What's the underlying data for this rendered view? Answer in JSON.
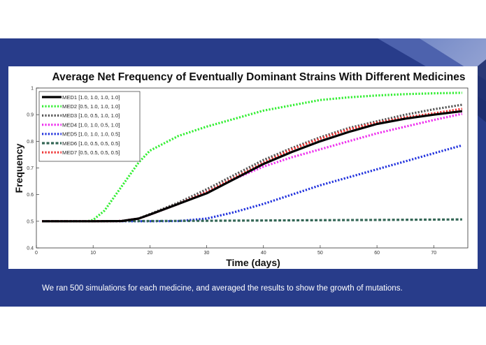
{
  "caption": "We ran 500 simulations for each medicine, and averaged the results to show the growth of mutations.",
  "chart_data": {
    "type": "line",
    "title": "Average Net Frequency of Eventually Dominant Strains With Different Medicines",
    "xlabel": "Time (days)",
    "ylabel": "Frequency",
    "xlim": [
      0,
      76
    ],
    "ylim": [
      0.4,
      1.0
    ],
    "xticks": [
      0,
      10,
      20,
      30,
      40,
      50,
      60,
      70
    ],
    "yticks": [
      0.4,
      0.5,
      0.6,
      0.7,
      0.8,
      0.9,
      1.0
    ],
    "legend_position": "top-left",
    "series": [
      {
        "name": "MED1 [1.0, 1.0, 1.0, 1.0]",
        "color": "#000000",
        "style": "solid",
        "x": [
          1,
          10,
          15,
          18,
          20,
          25,
          30,
          35,
          40,
          45,
          50,
          55,
          60,
          65,
          70,
          75
        ],
        "y": [
          0.5,
          0.5,
          0.501,
          0.51,
          0.525,
          0.565,
          0.605,
          0.66,
          0.715,
          0.76,
          0.8,
          0.835,
          0.865,
          0.885,
          0.9,
          0.913
        ]
      },
      {
        "name": "MED2 [0.5, 1.0, 1.0, 1.0]",
        "color": "#33ee33",
        "style": "dotted",
        "x": [
          1,
          9,
          10,
          12,
          15,
          18,
          20,
          25,
          30,
          35,
          40,
          45,
          50,
          55,
          60,
          65,
          70,
          75
        ],
        "y": [
          0.5,
          0.5,
          0.505,
          0.54,
          0.63,
          0.72,
          0.765,
          0.82,
          0.855,
          0.885,
          0.915,
          0.935,
          0.955,
          0.965,
          0.972,
          0.977,
          0.98,
          0.982
        ]
      },
      {
        "name": "MED3 [1.0, 0.5, 1.0, 1.0]",
        "color": "#555555",
        "style": "dotted",
        "x": [
          1,
          10,
          15,
          18,
          20,
          25,
          30,
          35,
          40,
          45,
          50,
          55,
          60,
          65,
          70,
          75
        ],
        "y": [
          0.5,
          0.5,
          0.501,
          0.51,
          0.527,
          0.57,
          0.62,
          0.675,
          0.73,
          0.775,
          0.815,
          0.85,
          0.875,
          0.9,
          0.92,
          0.937
        ]
      },
      {
        "name": "MED4 [1.0, 1.0, 0.5, 1.0]",
        "color": "#ee33ee",
        "style": "dotted",
        "x": [
          1,
          10,
          15,
          18,
          20,
          25,
          30,
          35,
          40,
          45,
          50,
          55,
          60,
          65,
          70,
          75
        ],
        "y": [
          0.5,
          0.5,
          0.501,
          0.51,
          0.525,
          0.565,
          0.61,
          0.66,
          0.705,
          0.74,
          0.77,
          0.8,
          0.83,
          0.855,
          0.88,
          0.903
        ]
      },
      {
        "name": "MED5 [1.0, 1.0, 1.0, 0.5]",
        "color": "#2233dd",
        "style": "dotted",
        "x": [
          1,
          20,
          25,
          30,
          35,
          40,
          45,
          50,
          55,
          60,
          65,
          70,
          75
        ],
        "y": [
          0.5,
          0.5,
          0.501,
          0.51,
          0.535,
          0.565,
          0.6,
          0.635,
          0.665,
          0.695,
          0.725,
          0.755,
          0.785
        ]
      },
      {
        "name": "MED6 [1.0, 0.5, 0.5, 0.5]",
        "color": "#336655",
        "style": "dashed",
        "x": [
          1,
          20,
          40,
          60,
          75
        ],
        "y": [
          0.5,
          0.501,
          0.503,
          0.505,
          0.507
        ]
      },
      {
        "name": "MED7 [0.5, 0.5, 0.5, 0.5]",
        "color": "#ee3333",
        "style": "dotted",
        "x": [
          1,
          10,
          15,
          18,
          20,
          25,
          30,
          35,
          40,
          45,
          50,
          55,
          60,
          65,
          70,
          75
        ],
        "y": [
          0.5,
          0.5,
          0.501,
          0.51,
          0.525,
          0.565,
          0.61,
          0.665,
          0.72,
          0.77,
          0.81,
          0.845,
          0.87,
          0.89,
          0.905,
          0.922
        ]
      }
    ]
  }
}
